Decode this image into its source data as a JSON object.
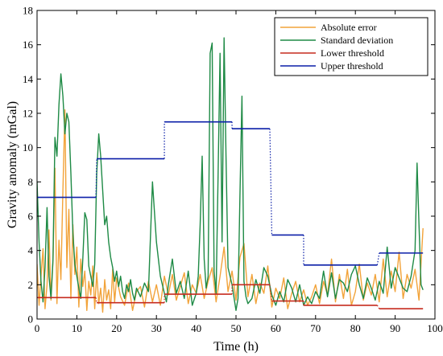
{
  "chart_data": {
    "type": "line",
    "xlabel": "Time (h)",
    "ylabel": "Gravity anomaly (mGal)",
    "xlim": [
      0,
      100
    ],
    "ylim": [
      0,
      18
    ],
    "xticks": [
      0,
      10,
      20,
      30,
      40,
      50,
      60,
      70,
      80,
      90,
      100
    ],
    "yticks": [
      0,
      2,
      4,
      6,
      8,
      10,
      12,
      14,
      16,
      18
    ],
    "grid": false,
    "legend_position": "top-right",
    "series": [
      {
        "name": "Absolute error",
        "color": "#f2a33a",
        "style": "line",
        "x": [
          0,
          0.5,
          1,
          1.5,
          2,
          2.5,
          3,
          3.5,
          4,
          4.5,
          5,
          5.5,
          6,
          6.5,
          7,
          7.5,
          8,
          8.5,
          9,
          9.5,
          10,
          10.5,
          11,
          11.5,
          12,
          12.5,
          13,
          13.5,
          14,
          14.5,
          15,
          15.5,
          16,
          16.5,
          17,
          17.5,
          18,
          18.5,
          19,
          19.5,
          20,
          21,
          22,
          23,
          24,
          25,
          26,
          27,
          28,
          29,
          30,
          31,
          32,
          33,
          34,
          35,
          36,
          37,
          38,
          39,
          40,
          41,
          42,
          43,
          44,
          45,
          46,
          47,
          48,
          49,
          50,
          51,
          52,
          53,
          54,
          55,
          56,
          57,
          58,
          59,
          60,
          61,
          62,
          63,
          64,
          65,
          66,
          67,
          68,
          69,
          70,
          71,
          72,
          73,
          74,
          75,
          76,
          77,
          78,
          79,
          80,
          81,
          82,
          83,
          84,
          85,
          86,
          87,
          88,
          89,
          90,
          91,
          92,
          93,
          94,
          95,
          96,
          97
        ],
        "y": [
          3.2,
          0.8,
          2.5,
          4.1,
          0.6,
          2.0,
          5.2,
          1.1,
          3.4,
          8.8,
          0.9,
          4.6,
          2.3,
          7.5,
          12.2,
          3.0,
          6.4,
          1.2,
          5.5,
          2.6,
          4.2,
          0.7,
          3.5,
          1.9,
          2.8,
          0.5,
          2.2,
          1.4,
          3.1,
          0.6,
          2.7,
          0.9,
          1.8,
          0.4,
          2.3,
          1.1,
          1.7,
          0.6,
          2.9,
          1.0,
          2.4,
          1.3,
          0.8,
          2.1,
          0.5,
          1.6,
          1.9,
          0.7,
          2.2,
          1.0,
          2.0,
          0.8,
          2.5,
          1.4,
          2.6,
          1.1,
          1.9,
          2.7,
          0.9,
          2.0,
          1.5,
          2.6,
          1.2,
          2.2,
          3.0,
          1.0,
          2.5,
          4.2,
          1.6,
          2.8,
          1.1,
          3.6,
          4.4,
          1.3,
          2.6,
          0.9,
          2.1,
          1.5,
          3.1,
          0.7,
          1.8,
          1.2,
          2.4,
          0.6,
          1.5,
          2.2,
          1.0,
          1.7,
          0.8,
          1.3,
          2.0,
          0.9,
          2.2,
          1.4,
          3.5,
          1.0,
          2.6,
          1.2,
          2.9,
          0.8,
          1.6,
          3.2,
          1.1,
          2.1,
          1.4,
          2.6,
          1.0,
          3.5,
          1.3,
          2.8,
          1.6,
          3.9,
          1.2,
          2.6,
          1.8,
          2.9,
          1.1,
          5.3
        ]
      },
      {
        "name": "Standard deviation",
        "color": "#1e8a45",
        "style": "line",
        "x": [
          0,
          0.5,
          1,
          1.5,
          2,
          2.5,
          3,
          3.5,
          4,
          4.5,
          5,
          5.5,
          6,
          6.5,
          7,
          7.5,
          8,
          8.5,
          9,
          9.5,
          10,
          10.5,
          11,
          11.5,
          12,
          12.5,
          13,
          13.5,
          14,
          14.5,
          15,
          15.5,
          16,
          16.5,
          17,
          17.5,
          18,
          18.5,
          19,
          19.5,
          20,
          20.5,
          21,
          21.5,
          22,
          22.5,
          23,
          23.5,
          24,
          24.5,
          25,
          26,
          27,
          28,
          29,
          30,
          31,
          32,
          32.5,
          33,
          34,
          35,
          36,
          37,
          38,
          39,
          40,
          40.5,
          41,
          41.5,
          42,
          42.5,
          43,
          43.5,
          44,
          44.5,
          45,
          45.5,
          46,
          46.5,
          47,
          47.5,
          48,
          49,
          50,
          50.5,
          51,
          51.5,
          52,
          52.5,
          53,
          54,
          55,
          56,
          57,
          58,
          59,
          60,
          61,
          62,
          63,
          64,
          65,
          66,
          67,
          68,
          69,
          70,
          71,
          72,
          73,
          74,
          75,
          76,
          77,
          78,
          79,
          80,
          81,
          82,
          83,
          84,
          85,
          86,
          87,
          88,
          89,
          90,
          91,
          92,
          93,
          94,
          95,
          95.5,
          96,
          96.5,
          97
        ],
        "y": [
          8.0,
          4.5,
          2.2,
          1.0,
          3.0,
          6.5,
          2.5,
          1.2,
          3.5,
          10.6,
          9.5,
          12.5,
          14.3,
          13.0,
          10.8,
          12.0,
          11.5,
          8.5,
          5.0,
          3.2,
          2.5,
          1.8,
          1.2,
          3.5,
          6.2,
          5.8,
          3.1,
          2.5,
          1.9,
          3.2,
          8.5,
          10.8,
          9.5,
          7.5,
          5.5,
          6.0,
          4.5,
          3.6,
          3.0,
          2.2,
          2.8,
          1.9,
          2.5,
          1.6,
          1.2,
          2.0,
          1.6,
          2.3,
          1.5,
          1.1,
          1.8,
          1.3,
          2.1,
          1.6,
          8.0,
          4.5,
          2.5,
          1.5,
          1.0,
          2.0,
          3.5,
          1.5,
          2.2,
          1.2,
          2.8,
          0.8,
          1.5,
          2.5,
          5.5,
          9.5,
          3.5,
          1.8,
          2.5,
          15.5,
          16.1,
          2.8,
          1.5,
          8.5,
          15.5,
          4.5,
          16.4,
          9.5,
          3.0,
          2.0,
          0.5,
          1.2,
          7.2,
          13.0,
          2.2,
          1.3,
          0.9,
          1.2,
          2.3,
          1.5,
          3.0,
          2.5,
          1.4,
          0.8,
          1.6,
          1.0,
          2.3,
          1.8,
          1.0,
          2.0,
          0.8,
          1.3,
          0.9,
          1.6,
          1.2,
          2.8,
          1.3,
          2.7,
          1.2,
          2.3,
          2.1,
          1.6,
          2.6,
          3.1,
          2.0,
          1.2,
          2.4,
          1.8,
          1.1,
          2.2,
          1.5,
          4.2,
          1.8,
          3.0,
          2.4,
          1.8,
          1.6,
          2.5,
          4.0,
          9.1,
          5.5,
          2.0,
          1.7
        ]
      },
      {
        "name": "Lower threshold",
        "color": "#c62b1f",
        "style": "step",
        "x": [
          0,
          14.8,
          15,
          32,
          32,
          49,
          49,
          58.5,
          59,
          67,
          67,
          85.5,
          86,
          97
        ],
        "y": [
          1.25,
          1.25,
          0.95,
          0.95,
          1.45,
          1.45,
          2.0,
          2.0,
          1.05,
          1.05,
          0.8,
          0.8,
          0.6,
          0.6
        ]
      },
      {
        "name": "Upper threshold",
        "color": "#0b1fa8",
        "style": "step",
        "x": [
          0,
          14.8,
          15,
          32,
          32,
          49,
          49,
          58.5,
          59,
          67,
          67,
          85.5,
          86,
          97
        ],
        "y": [
          7.1,
          7.1,
          9.35,
          9.35,
          11.5,
          11.5,
          11.1,
          11.1,
          4.9,
          4.9,
          3.15,
          3.15,
          3.85,
          3.85
        ]
      }
    ]
  }
}
